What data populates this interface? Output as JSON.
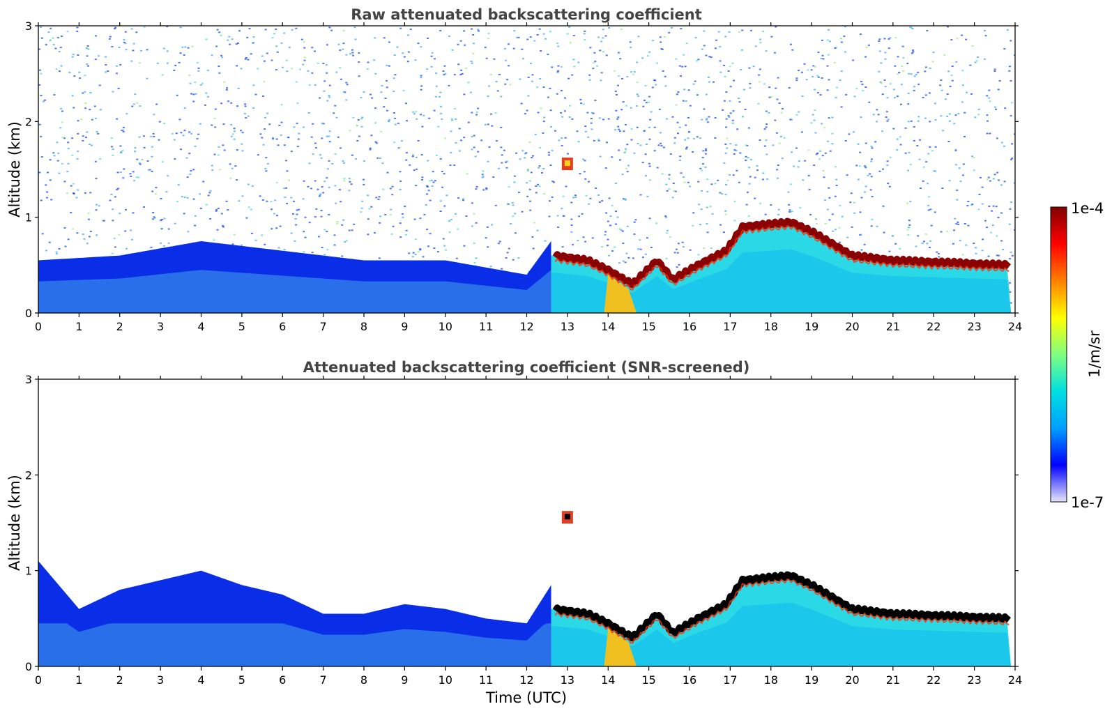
{
  "chart_data": [
    {
      "type": "heatmap",
      "title": "Raw attenuated backscattering coefficient",
      "ylabel": "Altitude (km)",
      "xlabel": "",
      "xlim": [
        0,
        24
      ],
      "ylim": [
        0,
        3
      ],
      "x_ticks": [
        "0",
        "1",
        "2",
        "3",
        "4",
        "5",
        "6",
        "7",
        "8",
        "9",
        "10",
        "11",
        "12",
        "13",
        "14",
        "15",
        "16",
        "17",
        "18",
        "19",
        "20",
        "21",
        "22",
        "23",
        "24"
      ],
      "y_ticks": [
        "0",
        "1",
        "2",
        "3"
      ],
      "color_scale": "log",
      "layer_top_km": [
        {
          "t": 0,
          "z": 0.55
        },
        {
          "t": 2,
          "z": 0.6
        },
        {
          "t": 4,
          "z": 0.75
        },
        {
          "t": 6,
          "z": 0.65
        },
        {
          "t": 8,
          "z": 0.55
        },
        {
          "t": 10,
          "z": 0.55
        },
        {
          "t": 12,
          "z": 0.4
        },
        {
          "t": 12.6,
          "z": 0.75
        }
      ],
      "strong_layer_km": [
        {
          "t": 12.7,
          "z": 0.6
        },
        {
          "t": 13.5,
          "z": 0.55
        },
        {
          "t": 14.0,
          "z": 0.45
        },
        {
          "t": 14.6,
          "z": 0.3
        },
        {
          "t": 15.2,
          "z": 0.55
        },
        {
          "t": 15.6,
          "z": 0.35
        },
        {
          "t": 16.2,
          "z": 0.5
        },
        {
          "t": 16.9,
          "z": 0.65
        },
        {
          "t": 17.3,
          "z": 0.9
        },
        {
          "t": 18.5,
          "z": 0.95
        },
        {
          "t": 19.0,
          "z": 0.85
        },
        {
          "t": 20.0,
          "z": 0.6
        },
        {
          "t": 21.0,
          "z": 0.55
        },
        {
          "t": 23.9,
          "z": 0.5
        }
      ],
      "feature_cloud": {
        "t": 13.0,
        "z": 1.55
      }
    },
    {
      "type": "heatmap",
      "title": "Attenuated backscattering coefficient (SNR-screened)",
      "ylabel": "Altitude (km)",
      "xlabel": "Time (UTC)",
      "xlim": [
        0,
        24
      ],
      "ylim": [
        0,
        3
      ],
      "x_ticks": [
        "0",
        "1",
        "2",
        "3",
        "4",
        "5",
        "6",
        "7",
        "8",
        "9",
        "10",
        "11",
        "12",
        "13",
        "14",
        "15",
        "16",
        "17",
        "18",
        "19",
        "20",
        "21",
        "22",
        "23",
        "24"
      ],
      "y_ticks": [
        "0",
        "1",
        "2",
        "3"
      ],
      "color_scale": "log",
      "screened_top_km": [
        {
          "t": 0,
          "z": 1.1
        },
        {
          "t": 1,
          "z": 0.6
        },
        {
          "t": 2,
          "z": 0.8
        },
        {
          "t": 3,
          "z": 0.9
        },
        {
          "t": 4,
          "z": 1.0
        },
        {
          "t": 5,
          "z": 0.85
        },
        {
          "t": 6,
          "z": 0.75
        },
        {
          "t": 7,
          "z": 0.55
        },
        {
          "t": 8,
          "z": 0.55
        },
        {
          "t": 9,
          "z": 0.65
        },
        {
          "t": 10,
          "z": 0.6
        },
        {
          "t": 11,
          "z": 0.5
        },
        {
          "t": 12,
          "z": 0.45
        },
        {
          "t": 12.6,
          "z": 0.85
        }
      ],
      "strong_layer_km": [
        {
          "t": 12.7,
          "z": 0.6
        },
        {
          "t": 13.5,
          "z": 0.55
        },
        {
          "t": 14.0,
          "z": 0.45
        },
        {
          "t": 14.6,
          "z": 0.3
        },
        {
          "t": 15.2,
          "z": 0.55
        },
        {
          "t": 15.6,
          "z": 0.35
        },
        {
          "t": 16.2,
          "z": 0.5
        },
        {
          "t": 16.9,
          "z": 0.65
        },
        {
          "t": 17.3,
          "z": 0.9
        },
        {
          "t": 18.5,
          "z": 0.95
        },
        {
          "t": 19.0,
          "z": 0.85
        },
        {
          "t": 20.0,
          "z": 0.6
        },
        {
          "t": 21.0,
          "z": 0.55
        },
        {
          "t": 23.9,
          "z": 0.5
        }
      ],
      "feature_cloud": {
        "t": 13.0,
        "z": 1.55
      }
    }
  ],
  "colorbar": {
    "label": "1/m/sr",
    "max_label": "1e-4",
    "min_label": "1e-7",
    "colormap": [
      "#e8e8f8",
      "#0000ff",
      "#00a0ff",
      "#00e0e0",
      "#80ff80",
      "#ffff00",
      "#ff8000",
      "#ff0000",
      "#800000"
    ]
  },
  "colors": {
    "low": "#0a2ee8",
    "mid": "#1aa6f0",
    "cyan": "#2ad8e6",
    "strong": "#8b0000",
    "screened_strong": "#000000"
  }
}
